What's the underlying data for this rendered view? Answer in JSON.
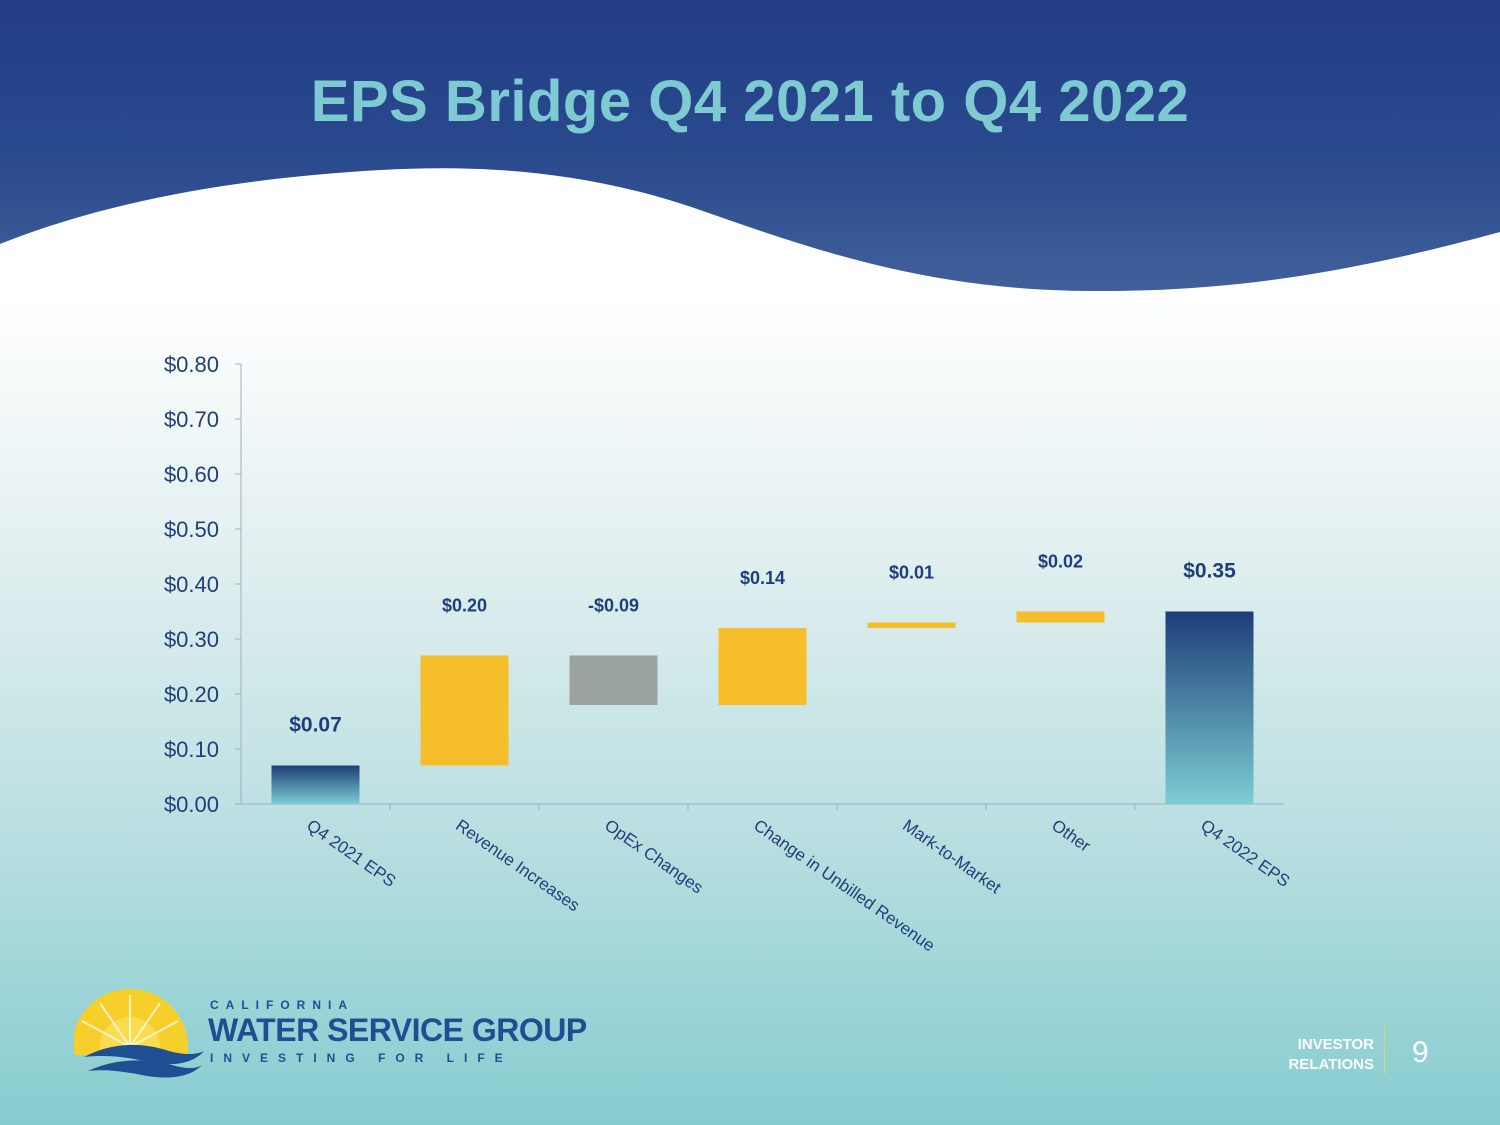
{
  "slide": {
    "title": "EPS Bridge Q4 2021 to Q4 2022",
    "page_number": "9",
    "section_label_line1": "INVESTOR",
    "section_label_line2": "RELATIONS"
  },
  "brand": {
    "line1": "CALIFORNIA",
    "line2": "WATER SERVICE GROUP",
    "tagline": "INVESTING FOR LIFE"
  },
  "colors": {
    "header_blue": "#223d86",
    "title_teal": "#7ecad1",
    "increase_yellow": "#f6be2b",
    "decrease_gray": "#9aa3a0",
    "total_top": "#1d3d78",
    "total_bottom": "#7dcdd3"
  },
  "chart_data": {
    "type": "bar",
    "subtype": "waterfall",
    "title": "",
    "xlabel": "",
    "ylabel": "",
    "ylim": [
      0,
      0.8
    ],
    "yticks": [
      "$0.00",
      "$0.10",
      "$0.20",
      "$0.30",
      "$0.40",
      "$0.50",
      "$0.60",
      "$0.70",
      "$0.80"
    ],
    "grid": false,
    "legend": "none",
    "categories": [
      "Q4 2021 EPS",
      "Revenue Increases",
      "OpEx Changes",
      "Change in Unbilled Revenue",
      "Mark-to-Market",
      "Other",
      "Q4 2022 EPS"
    ],
    "bars": [
      {
        "category": "Q4 2021 EPS",
        "kind": "total",
        "start": 0,
        "end": 0.07,
        "label": "$0.07"
      },
      {
        "category": "Revenue Increases",
        "kind": "increase",
        "start": 0.07,
        "end": 0.27,
        "label": "$0.20"
      },
      {
        "category": "OpEx Changes",
        "kind": "decrease",
        "start": 0.27,
        "end": 0.18,
        "label": "-$0.09"
      },
      {
        "category": "Change in Unbilled Revenue",
        "kind": "increase",
        "start": 0.18,
        "end": 0.32,
        "label": "$0.14"
      },
      {
        "category": "Mark-to-Market",
        "kind": "increase",
        "start": 0.32,
        "end": 0.33,
        "label": "$0.01"
      },
      {
        "category": "Other",
        "kind": "increase",
        "start": 0.33,
        "end": 0.35,
        "label": "$0.02"
      },
      {
        "category": "Q4 2022 EPS",
        "kind": "total",
        "start": 0,
        "end": 0.35,
        "label": "$0.35"
      }
    ]
  }
}
